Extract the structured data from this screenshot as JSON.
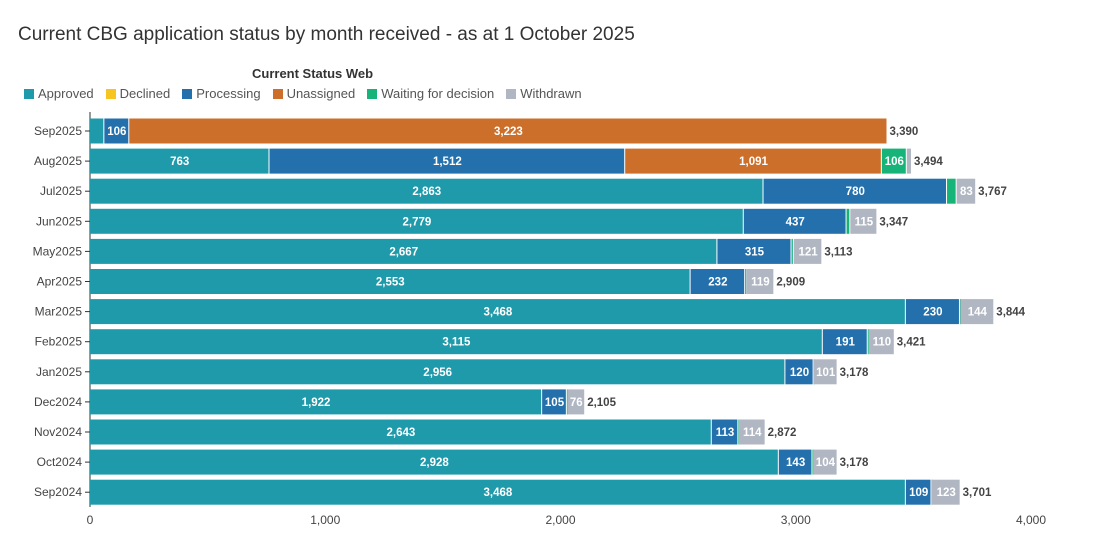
{
  "title": "Current CBG application status by month received - as at 1 October 2025",
  "chart_data": {
    "type": "bar",
    "orientation": "horizontal",
    "stacked": true,
    "legend_title": "Current Status Web",
    "legend_placement": "top-left",
    "categories": [
      "Sep2025",
      "Aug2025",
      "Jul2025",
      "Jun2025",
      "May2025",
      "Apr2025",
      "Mar2025",
      "Feb2025",
      "Jan2025",
      "Dec2024",
      "Nov2024",
      "Oct2024",
      "Sep2024"
    ],
    "series": [
      {
        "name": "Approved",
        "color": "#1f9aab",
        "values": [
          61,
          763,
          2863,
          2779,
          2667,
          2553,
          3468,
          3115,
          2956,
          1922,
          2643,
          2928,
          3468
        ]
      },
      {
        "name": "Declined",
        "color": "#f8c520",
        "values": [
          0,
          0,
          0,
          0,
          0,
          0,
          0,
          0,
          0,
          0,
          0,
          0,
          0
        ]
      },
      {
        "name": "Processing",
        "color": "#2370ad",
        "values": [
          106,
          1512,
          780,
          437,
          315,
          232,
          230,
          191,
          120,
          105,
          113,
          143,
          109
        ]
      },
      {
        "name": "Unassigned",
        "color": "#cc6f2b",
        "values": [
          3223,
          1091,
          0,
          0,
          0,
          0,
          0,
          0,
          0,
          0,
          0,
          0,
          0
        ]
      },
      {
        "name": "Waiting for decision",
        "color": "#17b47a",
        "values": [
          0,
          106,
          41,
          16,
          10,
          5,
          2,
          5,
          1,
          2,
          2,
          3,
          1
        ]
      },
      {
        "name": "Withdrawn",
        "color": "#b0b6c2",
        "values": [
          0,
          22,
          83,
          115,
          121,
          119,
          144,
          110,
          101,
          76,
          114,
          104,
          123
        ]
      }
    ],
    "totals": [
      "3,390",
      "3,494",
      "3,767",
      "3,347",
      "3,113",
      "2,909",
      "3,844",
      "3,421",
      "3,178",
      "2,105",
      "2,872",
      "3,178",
      "3,701"
    ],
    "xlim": [
      0,
      4000
    ],
    "xticks": [
      "0",
      "1,000",
      "2,000",
      "3,000",
      "4,000"
    ],
    "xtick_values": [
      0,
      1000,
      2000,
      3000,
      4000
    ],
    "grid": false
  }
}
